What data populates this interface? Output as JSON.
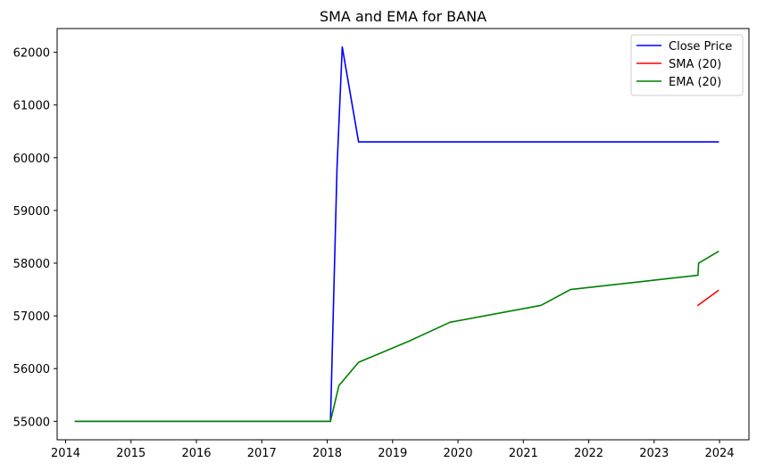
{
  "chart_data": {
    "type": "line",
    "title": "SMA and EMA for BANA",
    "xlabel": "",
    "ylabel": "",
    "x_ticks": [
      "2014",
      "2015",
      "2016",
      "2017",
      "2018",
      "2019",
      "2020",
      "2021",
      "2022",
      "2023",
      "2024"
    ],
    "y_ticks": [
      55000,
      56000,
      57000,
      58000,
      59000,
      60000,
      61000,
      62000
    ],
    "xlim": [
      2013.87,
      2024.45
    ],
    "ylim": [
      54650,
      62450
    ],
    "grid": false,
    "legend_position": "top-right",
    "series": [
      {
        "name": "Close Price",
        "color": "#0000ff",
        "points": [
          [
            2014.15,
            55000
          ],
          [
            2018.05,
            55000
          ],
          [
            2018.15,
            59800
          ],
          [
            2018.23,
            62100
          ],
          [
            2018.48,
            60300
          ],
          [
            2023.98,
            60300
          ]
        ]
      },
      {
        "name": "SMA (20)",
        "color": "#ff0000",
        "points": [
          [
            2023.67,
            57200
          ],
          [
            2023.98,
            57480
          ]
        ]
      },
      {
        "name": "EMA (20)",
        "color": "#008000",
        "points": [
          [
            2014.15,
            55000
          ],
          [
            2018.05,
            55000
          ],
          [
            2018.18,
            55680
          ],
          [
            2018.48,
            56120
          ],
          [
            2019.25,
            56520
          ],
          [
            2019.88,
            56880
          ],
          [
            2021.27,
            57200
          ],
          [
            2021.72,
            57500
          ],
          [
            2023.67,
            57770
          ],
          [
            2023.68,
            58000
          ],
          [
            2023.98,
            58220
          ]
        ]
      }
    ]
  }
}
